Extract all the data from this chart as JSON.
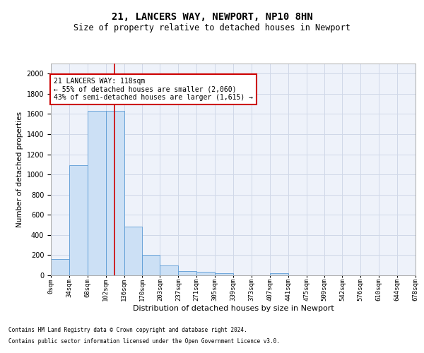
{
  "title1": "21, LANCERS WAY, NEWPORT, NP10 8HN",
  "title2": "Size of property relative to detached houses in Newport",
  "xlabel": "Distribution of detached houses by size in Newport",
  "ylabel": "Number of detached properties",
  "property_size": 118,
  "annotation_line1": "21 LANCERS WAY: 118sqm",
  "annotation_line2": "← 55% of detached houses are smaller (2,060)",
  "annotation_line3": "43% of semi-detached houses are larger (1,615) →",
  "bar_edges": [
    0,
    34,
    68,
    102,
    136,
    170,
    203,
    237,
    271,
    305,
    339,
    373,
    407,
    441,
    475,
    509,
    542,
    576,
    610,
    644,
    678
  ],
  "bar_heights": [
    160,
    1090,
    1630,
    1630,
    480,
    200,
    100,
    45,
    35,
    22,
    0,
    0,
    20,
    0,
    0,
    0,
    0,
    0,
    0,
    0
  ],
  "bar_color": "#cce0f5",
  "bar_edgecolor": "#5b9bd5",
  "vline_x": 118,
  "vline_color": "#cc0000",
  "annotation_box_color": "#cc0000",
  "grid_color": "#d0d8e8",
  "background_color": "#eef2fa",
  "ylim": [
    0,
    2100
  ],
  "yticks": [
    0,
    200,
    400,
    600,
    800,
    1000,
    1200,
    1400,
    1600,
    1800,
    2000
  ],
  "footnote1": "Contains HM Land Registry data © Crown copyright and database right 2024.",
  "footnote2": "Contains public sector information licensed under the Open Government Licence v3.0."
}
